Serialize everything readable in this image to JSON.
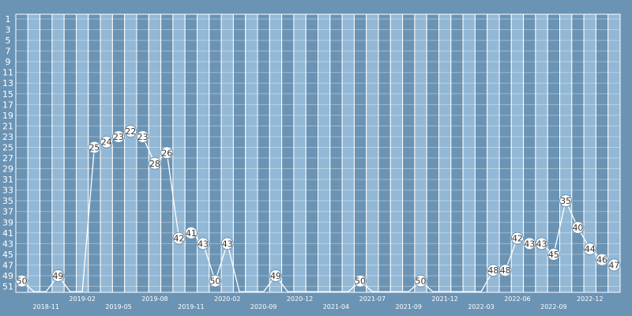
{
  "chart_data": {
    "type": "line",
    "y_axis": {
      "reversed": true,
      "ylim": [
        1,
        52
      ],
      "tick_values": [
        1,
        3,
        5,
        7,
        9,
        11,
        13,
        15,
        17,
        19,
        21,
        23,
        25,
        27,
        29,
        31,
        33,
        35,
        37,
        39,
        41,
        43,
        45,
        47,
        49,
        51
      ]
    },
    "x_labels": [
      {
        "index": 2,
        "text": "2018-11",
        "row": 2
      },
      {
        "index": 5,
        "text": "2019-02",
        "row": 1
      },
      {
        "index": 8,
        "text": "2019-05",
        "row": 2
      },
      {
        "index": 11,
        "text": "2019-08",
        "row": 1
      },
      {
        "index": 14,
        "text": "2019-11",
        "row": 2
      },
      {
        "index": 17,
        "text": "2020-02",
        "row": 1
      },
      {
        "index": 20,
        "text": "2020-09",
        "row": 2
      },
      {
        "index": 23,
        "text": "2020-12",
        "row": 1
      },
      {
        "index": 26,
        "text": "2021-04",
        "row": 2
      },
      {
        "index": 29,
        "text": "2021-07",
        "row": 1
      },
      {
        "index": 32,
        "text": "2021-09",
        "row": 2
      },
      {
        "index": 35,
        "text": "2021-12",
        "row": 1
      },
      {
        "index": 38,
        "text": "2022-03",
        "row": 2
      },
      {
        "index": 41,
        "text": "2022-06",
        "row": 1
      },
      {
        "index": 44,
        "text": "2022-09",
        "row": 2
      },
      {
        "index": 47,
        "text": "2022-12",
        "row": 1
      }
    ],
    "points": [
      {
        "rank": 50,
        "label": "50"
      },
      {
        "rank": 52,
        "label": ""
      },
      {
        "rank": 52,
        "label": ""
      },
      {
        "rank": 49,
        "label": "49"
      },
      {
        "rank": 52,
        "label": ""
      },
      {
        "rank": 52,
        "label": ""
      },
      {
        "rank": 25,
        "label": "25"
      },
      {
        "rank": 24,
        "label": "24"
      },
      {
        "rank": 23,
        "label": "23"
      },
      {
        "rank": 22,
        "label": "22"
      },
      {
        "rank": 23,
        "label": "23"
      },
      {
        "rank": 28,
        "label": "28"
      },
      {
        "rank": 26,
        "label": "26"
      },
      {
        "rank": 42,
        "label": "42"
      },
      {
        "rank": 41,
        "label": "41"
      },
      {
        "rank": 43,
        "label": "43"
      },
      {
        "rank": 50,
        "label": "50"
      },
      {
        "rank": 43,
        "label": "43"
      },
      {
        "rank": 52,
        "label": ""
      },
      {
        "rank": 52,
        "label": ""
      },
      {
        "rank": 52,
        "label": ""
      },
      {
        "rank": 49,
        "label": "49"
      },
      {
        "rank": 52,
        "label": ""
      },
      {
        "rank": 52,
        "label": ""
      },
      {
        "rank": 52,
        "label": ""
      },
      {
        "rank": 52,
        "label": ""
      },
      {
        "rank": 52,
        "label": ""
      },
      {
        "rank": 52,
        "label": ""
      },
      {
        "rank": 50,
        "label": "50"
      },
      {
        "rank": 52,
        "label": ""
      },
      {
        "rank": 52,
        "label": ""
      },
      {
        "rank": 52,
        "label": ""
      },
      {
        "rank": 52,
        "label": ""
      },
      {
        "rank": 50,
        "label": "50"
      },
      {
        "rank": 52,
        "label": ""
      },
      {
        "rank": 52,
        "label": ""
      },
      {
        "rank": 52,
        "label": ""
      },
      {
        "rank": 52,
        "label": ""
      },
      {
        "rank": 52,
        "label": ""
      },
      {
        "rank": 48,
        "label": "48"
      },
      {
        "rank": 48,
        "label": "48"
      },
      {
        "rank": 42,
        "label": "42"
      },
      {
        "rank": 43,
        "label": "43"
      },
      {
        "rank": 43,
        "label": "43"
      },
      {
        "rank": 45,
        "label": "45"
      },
      {
        "rank": 35,
        "label": "35"
      },
      {
        "rank": 40,
        "label": "40"
      },
      {
        "rank": 44,
        "label": "44"
      },
      {
        "rank": 46,
        "label": "46"
      },
      {
        "rank": 47,
        "label": "47"
      }
    ],
    "colors": {
      "background": "#6a93b4",
      "stripe_dark": "#6a93b4",
      "stripe_light": "#93b8d5",
      "grid": "#ffffff",
      "line": "#ffffff",
      "marker_fill": "#ffffff",
      "marker_text": "#333333"
    }
  }
}
